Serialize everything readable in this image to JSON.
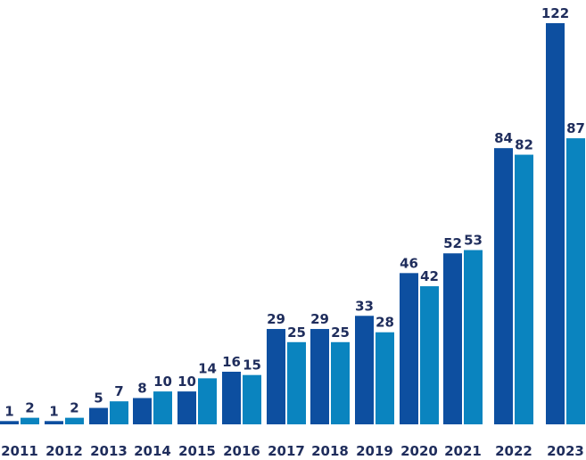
{
  "chart_data": {
    "type": "bar",
    "categories": [
      "2011",
      "2012",
      "2013",
      "2014",
      "2015",
      "2016",
      "2017",
      "2018",
      "2019",
      "2020",
      "2021",
      "2022",
      "2023"
    ],
    "series": [
      {
        "values": [
          1,
          1,
          5,
          8,
          10,
          16,
          29,
          29,
          33,
          46,
          52,
          84,
          122
        ],
        "color": "#0d4fa0"
      },
      {
        "values": [
          2,
          2,
          7,
          10,
          14,
          15,
          25,
          25,
          28,
          42,
          53,
          82,
          87
        ],
        "color": "#0a84bf"
      }
    ],
    "title": "",
    "xlabel": "",
    "ylabel": "",
    "ylim": [
      0,
      122
    ],
    "grid": false,
    "legend": "none",
    "data_labels": true
  }
}
